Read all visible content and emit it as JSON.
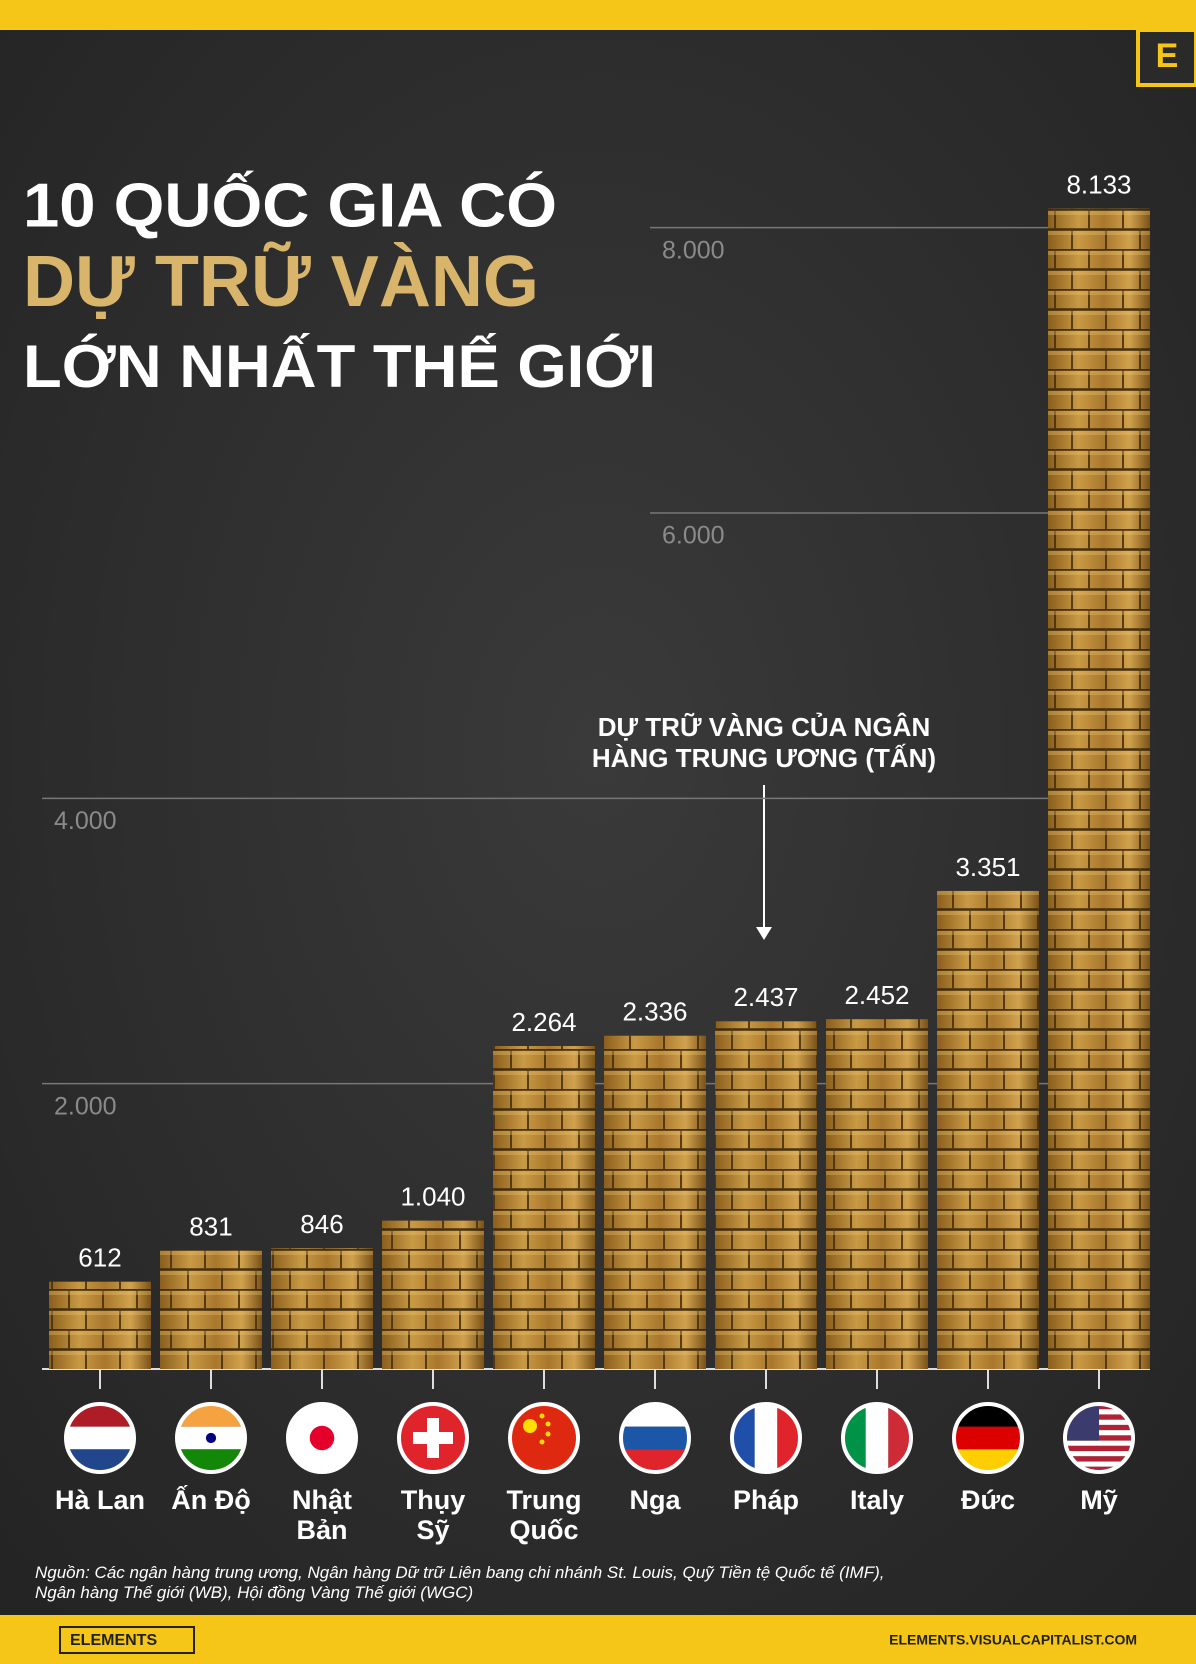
{
  "chart_data": {
    "type": "bar",
    "title": [
      "10 QUỐC GIA CÓ",
      "DỰ TRỮ VÀNG",
      "LỚN NHẤT THẾ GIỚI"
    ],
    "annotation": "DỰ TRỮ VÀNG CỦA NGÂN\nHÀNG TRUNG ƯƠNG (TẤN)",
    "categories": [
      "Hà Lan",
      "Ấn Độ",
      "Nhật\nBản",
      "Thụy\nSỹ",
      "Trung\nQuốc",
      "Nga",
      "Pháp",
      "Italy",
      "Đức",
      "Mỹ"
    ],
    "values": [
      612,
      831,
      846,
      1040,
      2264,
      2336,
      2437,
      2452,
      3351,
      8133
    ],
    "value_labels": [
      "612",
      "831",
      "846",
      "1.040",
      "2.264",
      "2.336",
      "2.437",
      "2.452",
      "3.351",
      "8.133"
    ],
    "color": "#b8862e",
    "ylim": [
      0,
      9000
    ],
    "yticks": [
      {
        "value": 2000,
        "label": "2.000"
      },
      {
        "value": 4000,
        "label": "4.000"
      },
      {
        "value": 6000,
        "label": "6.000"
      },
      {
        "value": 8000,
        "label": "8.000"
      }
    ],
    "grid": true,
    "source": "Nguồn: Các ngân hàng trung ương, Ngân hàng Dữ trữ Liên bang chi nhánh St. Louis, Quỹ Tiền tệ Quốc tế (IMF),\nNgân hàng Thế giới (WB), Hội đồng Vàng Thế giới (WGC)"
  },
  "branding": {
    "logo_letter": "E",
    "brand": "ELEMENTS",
    "url": "ELEMENTS.VISUALCAPITALIST.COM"
  }
}
